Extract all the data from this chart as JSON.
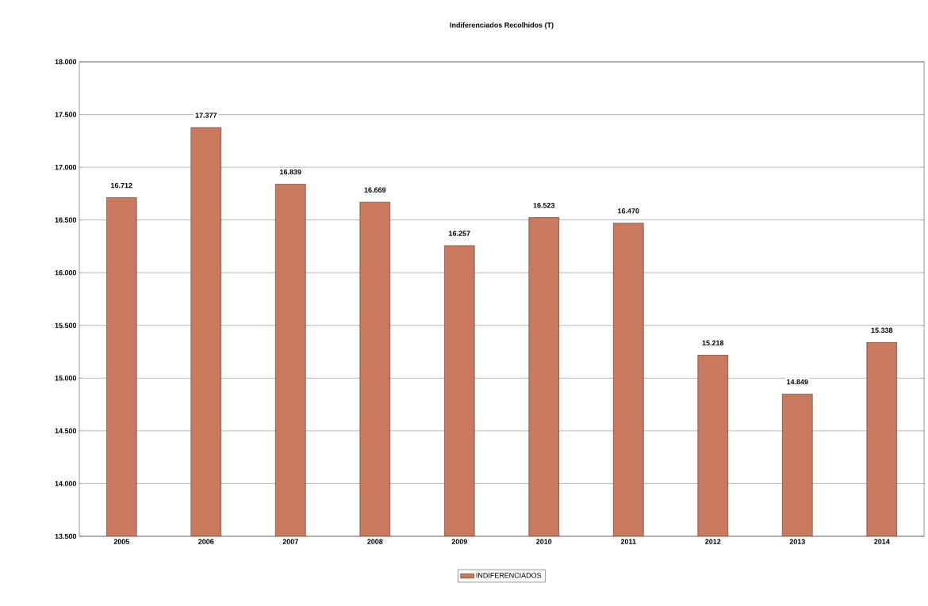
{
  "chart_data": {
    "type": "bar",
    "title": "Indiferenciados Recolhidos (T)",
    "categories": [
      "2005",
      "2006",
      "2007",
      "2008",
      "2009",
      "2010",
      "2011",
      "2012",
      "2013",
      "2014"
    ],
    "series": [
      {
        "name": "INDIFERENCIADOS",
        "color": "#c97a5e",
        "values": [
          16712,
          17377,
          16839,
          16669,
          16257,
          16523,
          16470,
          15218,
          14849,
          15338
        ],
        "value_labels": [
          "16.712",
          "17.377",
          "16.839",
          "16.669",
          "16.257",
          "16.523",
          "16.470",
          "15.218",
          "14.849",
          "15.338"
        ]
      }
    ],
    "ylim": [
      13500,
      18000
    ],
    "yticks": [
      {
        "value": 13500,
        "label": "13.500"
      },
      {
        "value": 14000,
        "label": "14.000"
      },
      {
        "value": 14500,
        "label": "14.500"
      },
      {
        "value": 15000,
        "label": "15.000"
      },
      {
        "value": 15500,
        "label": "15.500"
      },
      {
        "value": 16000,
        "label": "16.000"
      },
      {
        "value": 16500,
        "label": "16.500"
      },
      {
        "value": 17000,
        "label": "17.000"
      },
      {
        "value": 17500,
        "label": "17.500"
      },
      {
        "value": 18000,
        "label": "18.000"
      }
    ],
    "grid": "y",
    "legend": "bottom"
  }
}
